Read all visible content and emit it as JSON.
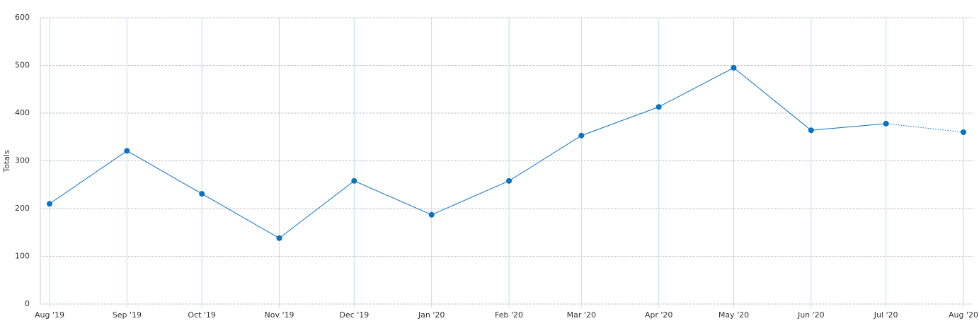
{
  "chart_data": {
    "type": "line",
    "y_label": "Totals",
    "x": [
      "2019-08",
      "2019-09",
      "2019-10",
      "2019-11",
      "2019-12",
      "2020-01",
      "2020-02",
      "2020-03",
      "2020-04",
      "2020-05",
      "2020-06",
      "2020-07",
      "2020-08"
    ],
    "xticks": [
      {
        "value": "2019-08",
        "label": "Aug '19"
      },
      {
        "value": "2019-09",
        "label": "Sep '19"
      },
      {
        "value": "2019-10",
        "label": "Oct '19"
      },
      {
        "value": "2019-11",
        "label": "Nov '19"
      },
      {
        "value": "2019-12",
        "label": "Dec '19"
      },
      {
        "value": "2020-01",
        "label": "Jan '20"
      },
      {
        "value": "2020-02",
        "label": "Feb '20"
      },
      {
        "value": "2020-03",
        "label": "Mar '20"
      },
      {
        "value": "2020-04",
        "label": "Apr '20"
      },
      {
        "value": "2020-05",
        "label": "May '20"
      },
      {
        "value": "2020-06",
        "label": "Jun '20"
      },
      {
        "value": "2020-07",
        "label": "Jul '20"
      },
      {
        "value": "2020-08",
        "label": "Aug '20"
      }
    ],
    "series": [
      {
        "color": "#0a72c2",
        "values": [
          210,
          321,
          231,
          138,
          258,
          187,
          258,
          353,
          413,
          495,
          364,
          378,
          360
        ]
      }
    ],
    "ylim": [
      0,
      600
    ],
    "yticks": [
      0,
      100,
      200,
      300,
      400,
      500,
      600
    ],
    "grid": true,
    "dotted_last_segment": true
  }
}
